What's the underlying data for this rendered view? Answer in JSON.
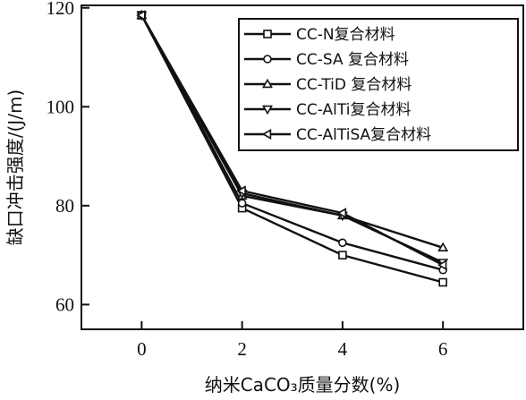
{
  "chart_data": {
    "type": "line",
    "xlabel": "纳米CaCO₃质量分数(%)",
    "ylabel": "缺口冲击强度/(J/m)",
    "xlim": [
      -1.2,
      7.6
    ],
    "ylim": [
      55,
      120.5
    ],
    "xticks": [
      0,
      2,
      4,
      6
    ],
    "yticks": [
      60,
      80,
      100,
      120
    ],
    "grid": false,
    "legend_position": "top-right",
    "x": [
      0,
      2,
      4,
      6
    ],
    "series": [
      {
        "name": "CC-N复合材料",
        "marker": "square",
        "values": [
          118.5,
          79.5,
          70,
          64.5
        ]
      },
      {
        "name": "CC-SA 复合材料",
        "marker": "circle",
        "values": [
          118.5,
          80.5,
          72.5,
          67
        ]
      },
      {
        "name": "CC-TiD 复合材料",
        "marker": "triangle-up",
        "values": [
          118.5,
          82,
          78,
          71.5
        ]
      },
      {
        "name": "CC-AlTi复合材料",
        "marker": "triangle-down",
        "values": [
          118.5,
          82.5,
          78,
          68.5
        ]
      },
      {
        "name": "CC-AlTiSA复合材料",
        "marker": "triangle-left",
        "values": [
          118.5,
          83,
          78.5,
          68
        ]
      }
    ]
  }
}
